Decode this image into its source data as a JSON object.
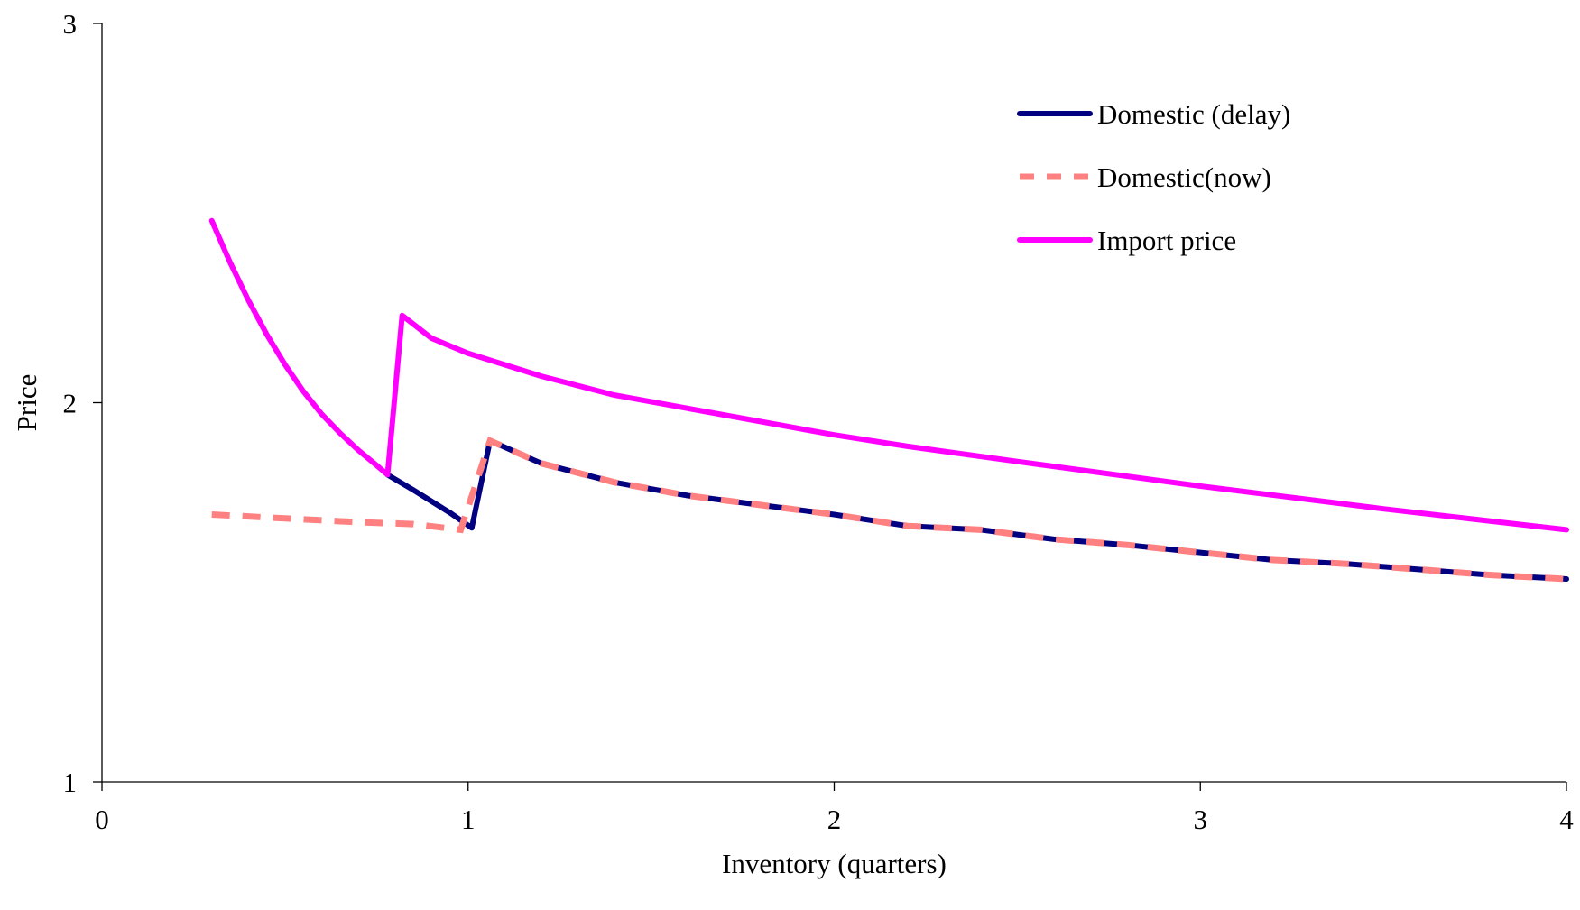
{
  "chart_data": {
    "type": "line",
    "title": "",
    "xlabel": "Inventory (quarters)",
    "ylabel": "Price",
    "xlim": [
      0,
      4
    ],
    "ylim": [
      1,
      3
    ],
    "x_ticks": [
      "0",
      "1",
      "2",
      "3",
      "4"
    ],
    "y_ticks": [
      "1",
      "2",
      "3"
    ],
    "grid": false,
    "legend_position": "top-right",
    "series": [
      {
        "name": "Domestic (delay)",
        "color": "#000080",
        "style": "solid",
        "points": [
          [
            0.78,
            1.81
          ],
          [
            0.85,
            1.77
          ],
          [
            0.9,
            1.74
          ],
          [
            0.95,
            1.71
          ],
          [
            1.01,
            1.67
          ],
          [
            1.06,
            1.9
          ],
          [
            1.2,
            1.84
          ],
          [
            1.4,
            1.79
          ],
          [
            1.6,
            1.755
          ],
          [
            1.8,
            1.73
          ],
          [
            2.0,
            1.705
          ],
          [
            2.2,
            1.675
          ],
          [
            2.4,
            1.665
          ],
          [
            2.6,
            1.64
          ],
          [
            2.8,
            1.625
          ],
          [
            3.0,
            1.605
          ],
          [
            3.2,
            1.585
          ],
          [
            3.4,
            1.575
          ],
          [
            3.6,
            1.56
          ],
          [
            3.8,
            1.545
          ],
          [
            4.0,
            1.535
          ]
        ]
      },
      {
        "name": "Domestic(now)",
        "color": "#ff8080",
        "style": "dashed",
        "points": [
          [
            0.3,
            1.705
          ],
          [
            0.5,
            1.695
          ],
          [
            0.7,
            1.685
          ],
          [
            0.85,
            1.68
          ],
          [
            0.98,
            1.665
          ],
          [
            1.06,
            1.9
          ],
          [
            1.2,
            1.84
          ],
          [
            1.4,
            1.79
          ],
          [
            1.6,
            1.755
          ],
          [
            1.8,
            1.73
          ],
          [
            2.0,
            1.705
          ],
          [
            2.2,
            1.675
          ],
          [
            2.4,
            1.665
          ],
          [
            2.6,
            1.64
          ],
          [
            2.8,
            1.625
          ],
          [
            3.0,
            1.605
          ],
          [
            3.2,
            1.585
          ],
          [
            3.4,
            1.575
          ],
          [
            3.6,
            1.56
          ],
          [
            3.8,
            1.545
          ],
          [
            4.0,
            1.535
          ]
        ]
      },
      {
        "name": "Import price",
        "color": "#ff00ff",
        "style": "solid",
        "points": [
          [
            0.3,
            2.48
          ],
          [
            0.35,
            2.37
          ],
          [
            0.4,
            2.27
          ],
          [
            0.45,
            2.18
          ],
          [
            0.5,
            2.1
          ],
          [
            0.55,
            2.03
          ],
          [
            0.6,
            1.97
          ],
          [
            0.65,
            1.92
          ],
          [
            0.7,
            1.875
          ],
          [
            0.75,
            1.835
          ],
          [
            0.78,
            1.81
          ],
          [
            0.82,
            2.23
          ],
          [
            0.9,
            2.17
          ],
          [
            1.0,
            2.13
          ],
          [
            1.2,
            2.07
          ],
          [
            1.4,
            2.02
          ],
          [
            1.6,
            1.985
          ],
          [
            1.8,
            1.95
          ],
          [
            2.0,
            1.915
          ],
          [
            2.2,
            1.885
          ],
          [
            2.5,
            1.845
          ],
          [
            3.0,
            1.78
          ],
          [
            3.5,
            1.72
          ],
          [
            4.0,
            1.665
          ]
        ]
      }
    ]
  }
}
